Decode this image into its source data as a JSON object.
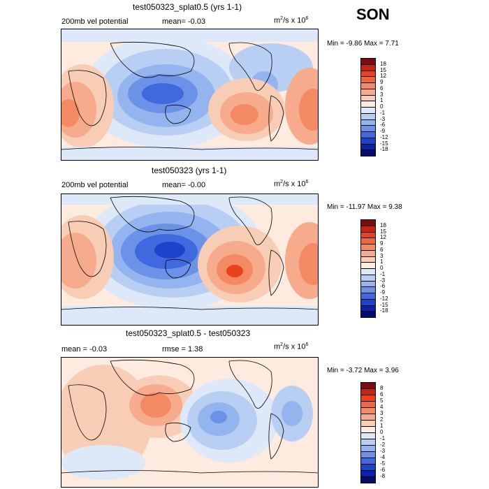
{
  "season": "SON",
  "panels": [
    {
      "title": "test050323_splat0.5 (yrs 1-1)",
      "left_text": "200mb vel potential",
      "mid_text": "mean=  -0.03",
      "units_base": "m",
      "units_sup1": "2",
      "units_mid": "/s x 10",
      "units_sup2": "6",
      "stats": "Min =  -9.86 Max =   7.71",
      "colorbar_labels": [
        "18",
        "15",
        "12",
        "9",
        "6",
        "3",
        "1",
        "0",
        "-1",
        "-3",
        "-6",
        "-9",
        "-12",
        "-15",
        "-18"
      ]
    },
    {
      "title": "test050323 (yrs 1-1)",
      "left_text": "200mb vel potential",
      "mid_text": "mean=  -0.00",
      "units_base": "m",
      "units_sup1": "2",
      "units_mid": "/s x 10",
      "units_sup2": "6",
      "stats": "Min = -11.97 Max =   9.38",
      "colorbar_labels": [
        "18",
        "15",
        "12",
        "9",
        "6",
        "3",
        "1",
        "0",
        "-1",
        "-3",
        "-6",
        "-9",
        "-12",
        "-15",
        "-18"
      ]
    },
    {
      "title": "test050323_splat0.5 - test050323",
      "left_text": "mean =  -0.03",
      "mid_text": "rmse =   1.38",
      "units_base": "m",
      "units_sup1": "2",
      "units_mid": "/s x 10",
      "units_sup2": "6",
      "stats": "Min =  -3.72 Max =   3.96",
      "colorbar_labels": [
        "8",
        "6",
        "5",
        "4",
        "3",
        "2",
        "1",
        "0",
        "-1",
        "-2",
        "-3",
        "-4",
        "-5",
        "-6",
        "-8"
      ]
    }
  ],
  "colors": {
    "scale": [
      "#7a0c0c",
      "#c8230f",
      "#e8431e",
      "#f0663d",
      "#f38a64",
      "#f5ab8c",
      "#f8cdb6",
      "#fdebe0",
      "#dde8f8",
      "#b8cff3",
      "#93b4ee",
      "#6b92e6",
      "#3f69dd",
      "#1d43cc",
      "#0b22a8",
      "#020b6e"
    ]
  }
}
